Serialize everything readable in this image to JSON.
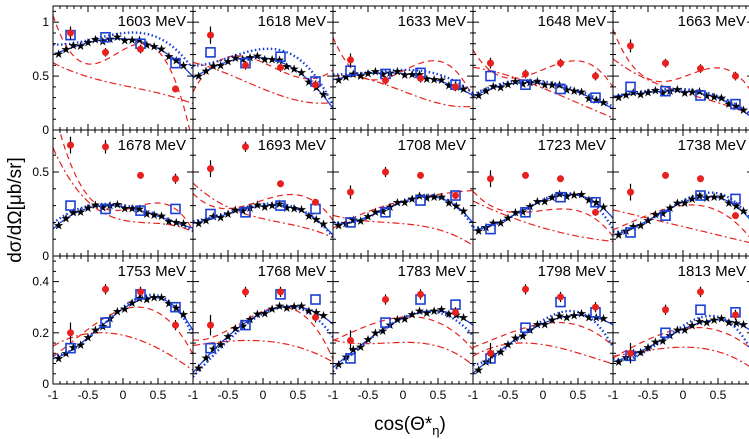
{
  "figure": {
    "ylabel": "dσ/dΩ[μb/sr]",
    "xlabel": "cos(Θ*",
    "xlabel_sub": "η",
    "xlabel_close": ")"
  },
  "colors": {
    "red": "#e8211f",
    "blue": "#1a3fd6",
    "black": "#000000"
  },
  "chart_data": {
    "type": "scatter",
    "grid": false,
    "layout": "3 rows x 5 columns of panels with shared axes",
    "x_ticks": [
      -1,
      -0.5,
      0,
      0.5,
      1
    ],
    "x_tick_labels": [
      "-1",
      "-0.5",
      "0",
      "0.5",
      "1"
    ],
    "x_range": [
      -1,
      1
    ],
    "rows": [
      {
        "ylim": [
          0,
          1.15
        ],
        "y_ticks": [
          0,
          0.5,
          1
        ],
        "y_tick_labels": [
          "0",
          "0.5",
          "1"
        ]
      },
      {
        "ylim": [
          0,
          0.75
        ],
        "y_ticks": [
          0,
          0.5
        ],
        "y_tick_labels": [
          "0",
          "0.5"
        ]
      },
      {
        "ylim": [
          0,
          0.5
        ],
        "y_ticks": [
          0,
          0.2,
          0.4
        ],
        "y_tick_labels": [
          "0",
          "0.2",
          "0.4"
        ]
      }
    ],
    "x_points": [
      -0.75,
      -0.25,
      0.25,
      0.75
    ],
    "panels": [
      {
        "label": "1603 MeV",
        "red": [
          0.9,
          0.72,
          0.75,
          0.38
        ],
        "red_err": [
          0.06,
          0.04,
          0.04,
          0.03
        ],
        "blue": [
          0.88,
          0.86,
          0.8,
          0.62
        ],
        "solid": [
          0.76,
          0.84,
          0.82,
          0.65
        ],
        "dotted": [
          0.8,
          0.87,
          0.9,
          0.75
        ],
        "dashed": [
          0.72,
          0.65,
          0.8,
          0.45
        ],
        "dashdot": [
          0.55,
          0.45,
          0.38,
          0.3
        ]
      },
      {
        "label": "1618 MeV",
        "red": [
          0.88,
          0.6,
          0.58,
          0.42
        ],
        "red_err": [
          0.08,
          0.04,
          0.04,
          0.04
        ],
        "blue": [
          0.72,
          0.62,
          0.68,
          0.45
        ],
        "solid": [
          0.57,
          0.67,
          0.63,
          0.4
        ],
        "dotted": [
          0.62,
          0.72,
          0.74,
          0.5
        ],
        "dashed": [
          0.58,
          0.68,
          0.55,
          0.48
        ],
        "dashdot": [
          0.58,
          0.45,
          0.32,
          0.25
        ]
      },
      {
        "label": "1633 MeV",
        "red": [
          0.65,
          0.46,
          0.48,
          0.4
        ],
        "red_err": [
          0.06,
          0.04,
          0.04,
          0.04
        ],
        "blue": [
          0.55,
          0.52,
          0.53,
          0.42
        ],
        "solid": [
          0.5,
          0.53,
          0.5,
          0.4
        ],
        "dotted": [
          0.52,
          0.55,
          0.55,
          0.45
        ],
        "dashed": [
          0.58,
          0.48,
          0.62,
          0.55
        ],
        "dashdot": [
          0.5,
          0.42,
          0.3,
          0.22
        ]
      },
      {
        "label": "1648 MeV",
        "red": [
          0.62,
          0.52,
          0.62,
          0.5
        ],
        "red_err": [
          0.05,
          0.04,
          0.04,
          0.04
        ],
        "blue": [
          0.5,
          0.42,
          0.38,
          0.3
        ],
        "solid": [
          0.38,
          0.44,
          0.4,
          0.28
        ],
        "dotted": [
          0.4,
          0.46,
          0.42,
          0.3
        ],
        "dashed": [
          0.55,
          0.5,
          0.62,
          0.58
        ],
        "dashdot": [
          0.55,
          0.45,
          0.32,
          0.18
        ]
      },
      {
        "label": "1663 MeV",
        "red": [
          0.78,
          0.62,
          0.57,
          0.5
        ],
        "red_err": [
          0.06,
          0.04,
          0.04,
          0.04
        ],
        "blue": [
          0.4,
          0.36,
          0.32,
          0.24
        ],
        "solid": [
          0.33,
          0.36,
          0.34,
          0.22
        ],
        "dotted": [
          0.34,
          0.38,
          0.36,
          0.24
        ],
        "dashed": [
          0.62,
          0.45,
          0.55,
          0.52
        ],
        "dashdot": [
          0.55,
          0.4,
          0.3,
          0.2
        ]
      },
      {
        "label": "1678 MeV",
        "red": [
          0.66,
          0.65,
          0.48,
          0.46
        ],
        "red_err": [
          0.05,
          0.04,
          0.02,
          0.03
        ],
        "blue": [
          0.3,
          0.28,
          0.27,
          0.28
        ],
        "solid": [
          0.24,
          0.3,
          0.27,
          0.2
        ],
        "dotted": [
          0.26,
          0.31,
          0.28,
          0.2
        ],
        "dashed": [
          0.55,
          0.28,
          0.3,
          0.28
        ],
        "dashdot": [
          0.45,
          0.25,
          0.2,
          0.18
        ]
      },
      {
        "label": "1693 MeV",
        "red": [
          0.52,
          0.65,
          0.43,
          0.32
        ],
        "red_err": [
          0.05,
          0.03,
          0.02,
          0.02
        ],
        "blue": [
          0.25,
          0.26,
          0.3,
          0.28
        ],
        "solid": [
          0.22,
          0.28,
          0.3,
          0.22
        ],
        "dotted": [
          0.23,
          0.29,
          0.31,
          0.22
        ],
        "dashed": [
          0.3,
          0.3,
          0.36,
          0.32
        ],
        "dashdot": [
          0.35,
          0.25,
          0.2,
          0.15
        ]
      },
      {
        "label": "1708 MeV",
        "red": [
          0.38,
          0.5,
          0.48,
          0.36
        ],
        "red_err": [
          0.04,
          0.03,
          0.02,
          0.02
        ],
        "blue": [
          0.2,
          0.26,
          0.33,
          0.36
        ],
        "solid": [
          0.2,
          0.28,
          0.35,
          0.3
        ],
        "dotted": [
          0.2,
          0.28,
          0.36,
          0.3
        ],
        "dashed": [
          0.22,
          0.3,
          0.35,
          0.38
        ],
        "dashdot": [
          0.22,
          0.2,
          0.18,
          0.12
        ]
      },
      {
        "label": "1723 MeV",
        "red": [
          0.46,
          0.48,
          0.46,
          0.26
        ],
        "red_err": [
          0.05,
          0.02,
          0.02,
          0.02
        ],
        "blue": [
          0.16,
          0.26,
          0.35,
          0.32
        ],
        "solid": [
          0.18,
          0.28,
          0.36,
          0.32
        ],
        "dotted": [
          0.18,
          0.28,
          0.37,
          0.3
        ],
        "dashed": [
          0.3,
          0.26,
          0.28,
          0.22
        ],
        "dashdot": [
          0.28,
          0.2,
          0.14,
          0.1
        ]
      },
      {
        "label": "1738 MeV",
        "red": [
          0.38,
          0.48,
          0.46,
          0.24
        ],
        "red_err": [
          0.05,
          0.02,
          0.02,
          0.02
        ],
        "blue": [
          0.14,
          0.24,
          0.36,
          0.34
        ],
        "solid": [
          0.16,
          0.27,
          0.35,
          0.3
        ],
        "dotted": [
          0.16,
          0.27,
          0.37,
          0.32
        ],
        "dashed": [
          0.2,
          0.28,
          0.3,
          0.2
        ],
        "dashdot": [
          0.25,
          0.2,
          0.15,
          0.1
        ]
      },
      {
        "label": "1753 MeV",
        "red": [
          0.2,
          0.37,
          0.36,
          0.23
        ],
        "red_err": [
          0.04,
          0.02,
          0.02,
          0.02
        ],
        "blue": [
          0.14,
          0.24,
          0.35,
          0.3
        ],
        "solid": [
          0.13,
          0.24,
          0.33,
          0.3
        ],
        "dotted": [
          0.13,
          0.24,
          0.34,
          0.3
        ],
        "dashed": [
          0.16,
          0.26,
          0.3,
          0.22
        ],
        "dashdot": [
          0.18,
          0.2,
          0.17,
          0.1
        ]
      },
      {
        "label": "1768 MeV",
        "red": [
          0.23,
          0.36,
          0.36,
          0.26
        ],
        "red_err": [
          0.04,
          0.02,
          0.02,
          0.02
        ],
        "blue": [
          0.14,
          0.23,
          0.35,
          0.33
        ],
        "solid": [
          0.12,
          0.24,
          0.3,
          0.28
        ],
        "dotted": [
          0.1,
          0.23,
          0.3,
          0.26
        ],
        "dashed": [
          0.18,
          0.25,
          0.3,
          0.22
        ],
        "dashdot": [
          0.16,
          0.17,
          0.16,
          0.12
        ]
      },
      {
        "label": "1783 MeV",
        "red": [
          0.17,
          0.33,
          0.35,
          0.28
        ],
        "red_err": [
          0.04,
          0.02,
          0.02,
          0.02
        ],
        "blue": [
          0.1,
          0.24,
          0.33,
          0.31
        ],
        "solid": [
          0.12,
          0.22,
          0.28,
          0.27
        ],
        "dotted": [
          0.11,
          0.22,
          0.28,
          0.25
        ],
        "dashed": [
          0.2,
          0.25,
          0.26,
          0.2
        ],
        "dashdot": [
          0.16,
          0.16,
          0.16,
          0.12
        ]
      },
      {
        "label": "1798 MeV",
        "red": [
          0.12,
          0.37,
          0.34,
          0.3
        ],
        "red_err": [
          0.04,
          0.02,
          0.02,
          0.02
        ],
        "blue": [
          0.1,
          0.22,
          0.32,
          0.28
        ],
        "solid": [
          0.1,
          0.2,
          0.26,
          0.26
        ],
        "dotted": [
          0.1,
          0.2,
          0.28,
          0.24
        ],
        "dashed": [
          0.17,
          0.22,
          0.24,
          0.2
        ],
        "dashdot": [
          0.14,
          0.16,
          0.14,
          0.1
        ]
      },
      {
        "label": "1813 MeV",
        "red": [
          0.12,
          0.29,
          0.36,
          0.27
        ],
        "red_err": [
          0.04,
          0.02,
          0.02,
          0.02
        ],
        "blue": [
          0.11,
          0.2,
          0.29,
          0.28
        ],
        "solid": [
          0.11,
          0.18,
          0.24,
          0.24
        ],
        "dotted": [
          0.1,
          0.18,
          0.26,
          0.22
        ],
        "dashed": [
          0.14,
          0.2,
          0.22,
          0.18
        ],
        "dashdot": [
          0.12,
          0.14,
          0.14,
          0.1
        ]
      }
    ]
  }
}
